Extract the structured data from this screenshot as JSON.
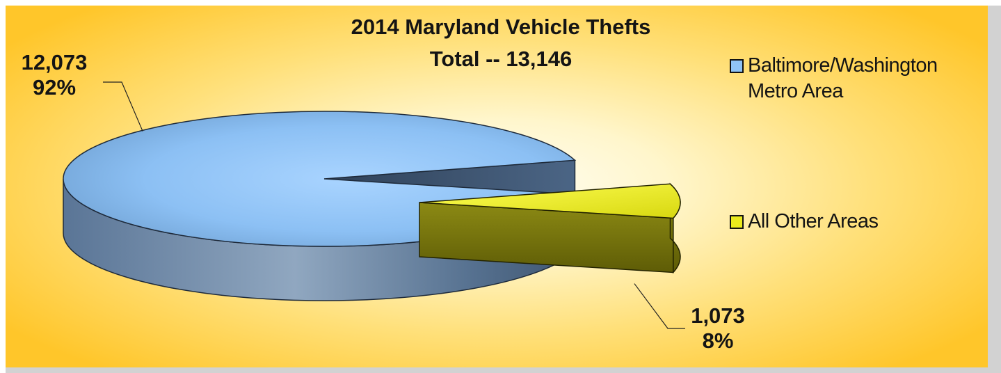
{
  "chart_data": {
    "type": "pie",
    "title": "2014 Maryland Vehicle Thefts",
    "subtitle": "Total -- 13,146",
    "slices": [
      {
        "label": "Baltimore/Washington Metro Area",
        "value": 12073,
        "value_label": "12,073",
        "percent_label": "92%",
        "color": "#8fc3f5"
      },
      {
        "label": "All Other Areas",
        "value": 1073,
        "value_label": "1,073",
        "percent_label": "8%",
        "color": "#eaea1c"
      }
    ],
    "legend_position": "right",
    "three_d": true,
    "exploded_slice": "All Other Areas"
  }
}
